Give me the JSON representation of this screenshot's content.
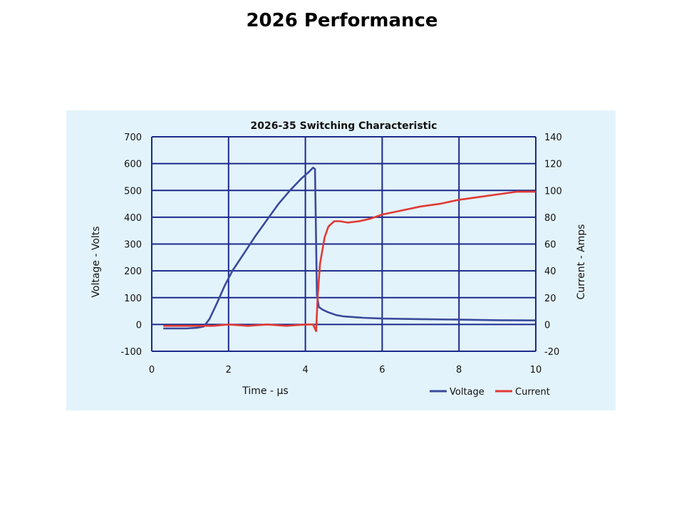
{
  "slide": {
    "title": "2026 Performance"
  },
  "chart_data": {
    "type": "line",
    "title": "2026-35 Switching Characteristic",
    "xlabel": "Time - µs",
    "ylabel_left": "Voltage - Volts",
    "ylabel_right": "Current - Amps",
    "xlim": [
      0,
      10
    ],
    "ylim_left": [
      -100,
      700
    ],
    "ylim_right": [
      -20,
      140
    ],
    "x_ticks": [
      "0",
      "2",
      "4",
      "6",
      "8",
      "10"
    ],
    "y_left_ticks": [
      "-100",
      "0",
      "100",
      "200",
      "300",
      "400",
      "500",
      "600",
      "700"
    ],
    "y_right_ticks": [
      "-20",
      "0",
      "20",
      "40",
      "60",
      "80",
      "100",
      "120",
      "140"
    ],
    "grid": true,
    "legend_position": "bottom-right",
    "colors": {
      "voltage": "#3a4a9c",
      "current": "#e03a34",
      "grid": "#1c2a8c",
      "background": "#e3f3fb"
    },
    "series": [
      {
        "name": "Voltage",
        "axis": "left",
        "x": [
          0.3,
          0.6,
          0.9,
          1.2,
          1.35,
          1.5,
          1.7,
          1.9,
          2.1,
          2.4,
          2.7,
          3.0,
          3.3,
          3.6,
          3.9,
          4.1,
          4.2,
          4.25,
          4.28,
          4.3,
          4.35,
          4.45,
          4.6,
          4.8,
          5.0,
          5.5,
          6.0,
          7.0,
          8.0,
          9.0,
          10.0
        ],
        "values": [
          -15,
          -15,
          -15,
          -12,
          -8,
          20,
          80,
          145,
          200,
          265,
          330,
          390,
          450,
          500,
          545,
          570,
          585,
          580,
          300,
          110,
          65,
          55,
          45,
          35,
          30,
          25,
          22,
          20,
          18,
          16,
          15
        ]
      },
      {
        "name": "Current",
        "axis": "right",
        "x": [
          0.3,
          0.7,
          1.2,
          1.6,
          2.0,
          2.5,
          3.0,
          3.5,
          4.0,
          4.2,
          4.28,
          4.32,
          4.38,
          4.5,
          4.6,
          4.75,
          4.9,
          5.1,
          5.4,
          5.7,
          6.0,
          6.5,
          7.0,
          7.5,
          8.0,
          8.5,
          9.0,
          9.5,
          10.0
        ],
        "values": [
          -1,
          -1,
          -1,
          -1,
          0,
          -1,
          0,
          -1,
          0,
          0,
          -5,
          20,
          45,
          65,
          73,
          77,
          77,
          76,
          77,
          79,
          82,
          85,
          88,
          90,
          93,
          95,
          97,
          99,
          99
        ]
      }
    ]
  }
}
